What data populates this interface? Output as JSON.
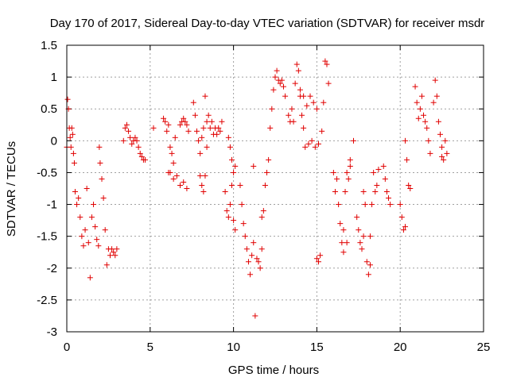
{
  "chart_data": {
    "type": "scatter",
    "title": "Day 170 of 2017, Sidereal Day-to-day VTEC variation (SDTVAR) for receiver msdr",
    "xlabel": "GPS time / hours",
    "ylabel": "SDTVAR / TECUs",
    "xlim": [
      0,
      25
    ],
    "ylim": [
      -3,
      1.5
    ],
    "xticks": [
      "0",
      "5",
      "10",
      "15",
      "20",
      "25"
    ],
    "yticks": [
      "1.5",
      "1",
      "0.5",
      "0",
      "-0.5",
      "-1",
      "-1.5",
      "-2",
      "-2.5",
      "-3"
    ],
    "grid": true,
    "marker": "+",
    "color": "#e00000",
    "series": [
      {
        "name": "SDTVAR",
        "segments": [
          {
            "x": [
              0.0,
              0.05,
              0.1,
              0.15,
              0.2,
              0.25,
              0.3,
              0.35,
              0.4,
              0.45
            ],
            "y": [
              -0.1,
              0.65,
              0.5,
              0.2,
              0.05,
              -0.1,
              0.2,
              0.1,
              -0.2,
              -0.35
            ]
          },
          {
            "x": [
              0.5,
              0.6,
              0.7,
              0.8,
              0.9,
              1.0,
              1.1,
              1.2,
              1.3,
              1.4
            ],
            "y": [
              -0.8,
              -1.0,
              -0.9,
              -1.2,
              -1.5,
              -1.65,
              -1.4,
              -0.75,
              -1.6,
              -2.15
            ]
          },
          {
            "x": [
              1.5,
              1.6,
              1.7,
              1.8,
              1.9
            ],
            "y": [
              -1.2,
              -1.0,
              -1.35,
              -1.55,
              -1.65
            ]
          },
          {
            "x": [
              1.95,
              2.0
            ],
            "y": [
              -0.1,
              -0.35
            ]
          },
          {
            "x": [
              2.1,
              2.2,
              2.3,
              2.4
            ],
            "y": [
              -0.6,
              -0.9,
              -1.4,
              -1.95
            ]
          },
          {
            "x": [
              2.5,
              2.6,
              2.7,
              2.8,
              2.9,
              3.0
            ],
            "y": [
              -1.7,
              -1.8,
              -1.7,
              -1.75,
              -1.8,
              -1.7
            ]
          },
          {
            "x": [
              3.4,
              3.5,
              3.6,
              3.7,
              3.8,
              3.9,
              4.0,
              4.1,
              4.2,
              4.3,
              4.4,
              4.5,
              4.6,
              4.7
            ],
            "y": [
              0.0,
              0.2,
              0.25,
              0.15,
              0.05,
              -0.05,
              0.0,
              0.05,
              0.0,
              -0.1,
              -0.2,
              -0.25,
              -0.3,
              -0.3
            ]
          },
          {
            "x": [
              5.2
            ],
            "y": [
              0.2
            ]
          },
          {
            "x": [
              5.8,
              5.9,
              6.0,
              6.1
            ],
            "y": [
              0.35,
              0.3,
              0.15,
              0.25
            ]
          },
          {
            "x": [
              6.1,
              6.2,
              6.3,
              6.4,
              6.5
            ],
            "y": [
              -0.5,
              -0.1,
              -0.2,
              -0.35,
              0.05
            ]
          },
          {
            "x": [
              6.2,
              6.4,
              6.6,
              6.8,
              7.0,
              7.2
            ],
            "y": [
              -0.5,
              -0.6,
              -0.55,
              -0.7,
              -0.65,
              -0.75
            ]
          },
          {
            "x": [
              6.8,
              6.9,
              7.0,
              7.1,
              7.2,
              7.3
            ],
            "y": [
              0.25,
              0.3,
              0.35,
              0.3,
              0.25,
              0.15
            ]
          },
          {
            "x": [
              7.6,
              7.7,
              7.8,
              7.9,
              8.0,
              8.1,
              8.2
            ],
            "y": [
              0.6,
              0.4,
              0.15,
              0.0,
              -0.2,
              0.05,
              0.2
            ]
          },
          {
            "x": [
              8.0,
              8.1,
              8.2,
              8.3,
              8.4
            ],
            "y": [
              -0.55,
              -0.7,
              -0.8,
              -0.55,
              -0.1
            ]
          },
          {
            "x": [
              8.3,
              8.4,
              8.5,
              8.6,
              8.7,
              8.8,
              8.9,
              9.0,
              9.1,
              9.2,
              9.3
            ],
            "y": [
              0.7,
              0.3,
              0.4,
              0.2,
              0.3,
              0.1,
              0.2,
              0.1,
              0.2,
              0.15,
              0.3
            ]
          },
          {
            "x": [
              9.5,
              9.6,
              9.7,
              9.8,
              9.9,
              10.0,
              10.1
            ],
            "y": [
              -0.8,
              -1.1,
              -1.2,
              -1.0,
              -0.7,
              -1.25,
              -1.4
            ]
          },
          {
            "x": [
              9.7,
              9.8,
              9.9,
              10.0,
              10.1
            ],
            "y": [
              0.05,
              -0.1,
              -0.3,
              -0.5,
              -0.4
            ]
          },
          {
            "x": [
              10.4,
              10.5,
              10.6,
              10.7,
              10.8,
              10.9,
              11.0,
              11.1,
              11.2
            ],
            "y": [
              -0.7,
              -1.0,
              -1.3,
              -1.5,
              -1.7,
              -1.9,
              -2.1,
              -1.8,
              -1.6
            ]
          },
          {
            "x": [
              11.2,
              11.3
            ],
            "y": [
              -0.4,
              -2.75
            ]
          },
          {
            "x": [
              11.4,
              11.5,
              11.6,
              11.7
            ],
            "y": [
              -1.85,
              -1.9,
              -2.0,
              -1.7
            ]
          },
          {
            "x": [
              11.7,
              11.8,
              11.9,
              12.0,
              12.1
            ],
            "y": [
              -1.2,
              -1.1,
              -0.7,
              -0.5,
              -0.3
            ]
          },
          {
            "x": [
              12.2,
              12.3,
              12.4,
              12.5,
              12.6,
              12.7,
              12.8,
              12.9,
              13.0,
              13.1
            ],
            "y": [
              0.2,
              0.5,
              0.8,
              1.0,
              1.1,
              0.95,
              0.9,
              0.95,
              0.85,
              0.7
            ]
          },
          {
            "x": [
              13.3,
              13.4,
              13.5,
              13.6,
              13.7,
              13.8,
              13.9,
              14.0,
              14.1,
              14.2
            ],
            "y": [
              0.4,
              0.3,
              0.5,
              0.3,
              0.9,
              1.2,
              1.1,
              0.7,
              0.4,
              0.2
            ]
          },
          {
            "x": [
              14.0,
              14.2,
              14.4,
              14.6,
              14.8,
              15.0
            ],
            "y": [
              0.8,
              0.7,
              0.55,
              0.7,
              0.6,
              0.5
            ]
          },
          {
            "x": [
              14.3,
              14.5,
              14.7,
              14.9,
              15.1
            ],
            "y": [
              -0.1,
              -0.05,
              0.0,
              -0.1,
              -0.05
            ]
          },
          {
            "x": [
              15.0,
              15.1,
              15.2,
              15.3,
              15.4,
              15.5,
              15.6,
              15.7
            ],
            "y": [
              -1.85,
              -1.9,
              -1.8,
              0.15,
              0.6,
              1.25,
              1.2,
              0.9
            ]
          },
          {
            "x": [
              16.0,
              16.1,
              16.2,
              16.3,
              16.4,
              16.5,
              16.6,
              16.7,
              16.8,
              16.9,
              17.0
            ],
            "y": [
              -0.5,
              -0.8,
              -0.6,
              -1.0,
              -1.3,
              -1.6,
              -1.4,
              -0.8,
              -0.5,
              -0.6,
              -0.4
            ]
          },
          {
            "x": [
              16.6,
              16.8,
              17.0,
              17.2
            ],
            "y": [
              -1.75,
              -1.6,
              -0.3,
              0.0
            ]
          },
          {
            "x": [
              17.4,
              17.5,
              17.6,
              17.7,
              17.8
            ],
            "y": [
              -1.2,
              -1.4,
              -1.6,
              -1.7,
              -1.5
            ]
          },
          {
            "x": [
              17.8,
              17.9,
              18.0,
              18.1,
              18.2
            ],
            "y": [
              -0.8,
              -1.0,
              -1.9,
              -2.1,
              -1.95
            ]
          },
          {
            "x": [
              18.2,
              18.3,
              18.4,
              18.5,
              18.6,
              18.7
            ],
            "y": [
              -1.5,
              -1.0,
              -0.5,
              -0.8,
              -0.7,
              -0.45
            ]
          },
          {
            "x": [
              19.0,
              19.1,
              19.2,
              19.3,
              19.4
            ],
            "y": [
              -0.4,
              -0.6,
              -0.8,
              -0.9,
              -1.0
            ]
          },
          {
            "x": [
              20.0,
              20.1,
              20.2,
              20.3
            ],
            "y": [
              -1.0,
              -1.2,
              -1.4,
              -1.35
            ]
          },
          {
            "x": [
              20.3,
              20.4,
              20.5,
              20.6
            ],
            "y": [
              0.0,
              -0.3,
              -0.7,
              -0.75
            ]
          },
          {
            "x": [
              20.9,
              21.0,
              21.1,
              21.2,
              21.3,
              21.4,
              21.5,
              21.6,
              21.7,
              21.8
            ],
            "y": [
              0.85,
              0.6,
              0.35,
              0.5,
              0.7,
              0.4,
              0.3,
              0.2,
              0.0,
              -0.2
            ]
          },
          {
            "x": [
              22.0,
              22.1,
              22.2,
              22.3,
              22.4,
              22.5
            ],
            "y": [
              0.6,
              0.95,
              0.7,
              0.3,
              0.1,
              -0.1
            ]
          },
          {
            "x": [
              22.5,
              22.6,
              22.7,
              22.8
            ],
            "y": [
              -0.25,
              -0.3,
              0.0,
              -0.2
            ]
          }
        ]
      }
    ]
  }
}
